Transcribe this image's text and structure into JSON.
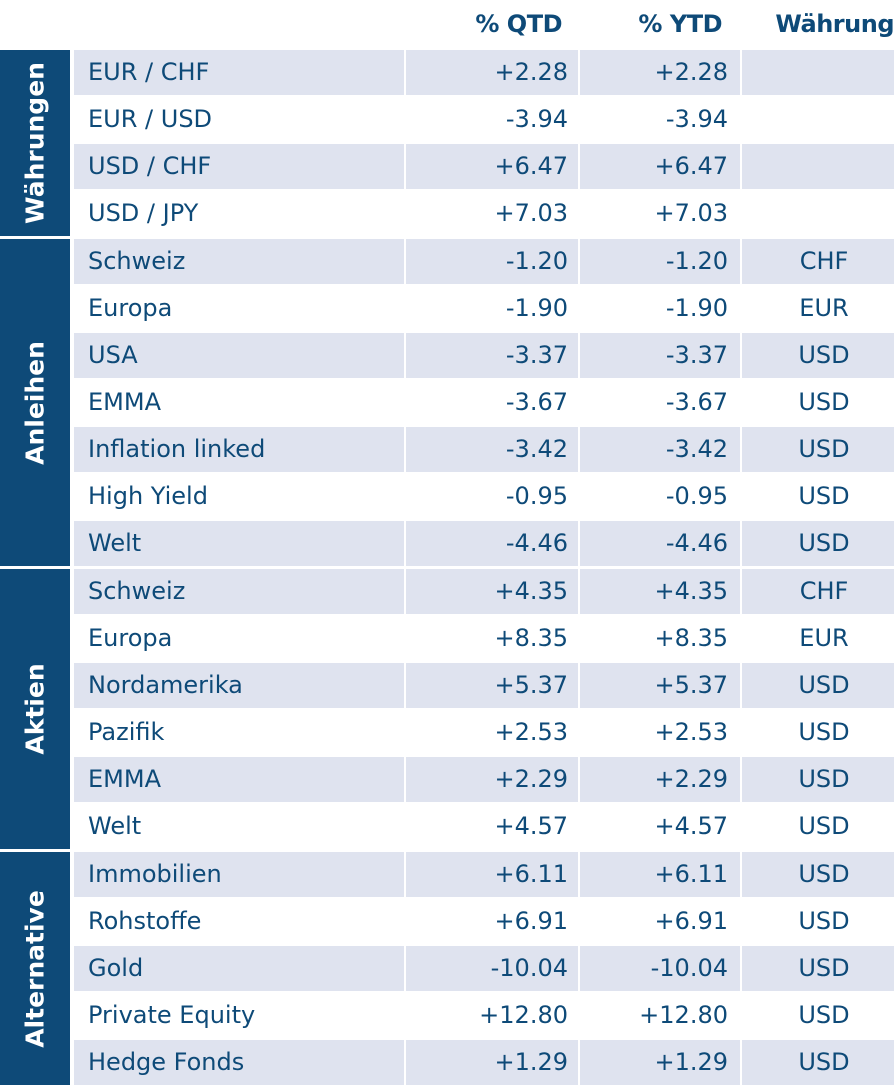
{
  "header": {
    "qtd": "% QTD",
    "ytd": "% YTD",
    "currency": "Währung"
  },
  "groups": [
    {
      "label": "Währungen",
      "rows": [
        {
          "name": "EUR / CHF",
          "qtd": "+2.28",
          "ytd": "+2.28",
          "cur": ""
        },
        {
          "name": "EUR / USD",
          "qtd": "-3.94",
          "ytd": "-3.94",
          "cur": ""
        },
        {
          "name": "USD / CHF",
          "qtd": "+6.47",
          "ytd": "+6.47",
          "cur": ""
        },
        {
          "name": "USD / JPY",
          "qtd": "+7.03",
          "ytd": "+7.03",
          "cur": ""
        }
      ]
    },
    {
      "label": "Anleihen",
      "rows": [
        {
          "name": "Schweiz",
          "qtd": "-1.20",
          "ytd": "-1.20",
          "cur": "CHF"
        },
        {
          "name": "Europa",
          "qtd": "-1.90",
          "ytd": "-1.90",
          "cur": "EUR"
        },
        {
          "name": "USA",
          "qtd": "-3.37",
          "ytd": "-3.37",
          "cur": "USD"
        },
        {
          "name": "EMMA",
          "qtd": "-3.67",
          "ytd": "-3.67",
          "cur": "USD"
        },
        {
          "name": "Inflation linked",
          "qtd": "-3.42",
          "ytd": "-3.42",
          "cur": "USD"
        },
        {
          "name": "High Yield",
          "qtd": "-0.95",
          "ytd": "-0.95",
          "cur": "USD"
        },
        {
          "name": "Welt",
          "qtd": "-4.46",
          "ytd": "-4.46",
          "cur": "USD"
        }
      ]
    },
    {
      "label": "Aktien",
      "rows": [
        {
          "name": "Schweiz",
          "qtd": "+4.35",
          "ytd": "+4.35",
          "cur": "CHF"
        },
        {
          "name": "Europa",
          "qtd": "+8.35",
          "ytd": "+8.35",
          "cur": "EUR"
        },
        {
          "name": "Nordamerika",
          "qtd": "+5.37",
          "ytd": "+5.37",
          "cur": "USD"
        },
        {
          "name": "Pazifik",
          "qtd": "+2.53",
          "ytd": "+2.53",
          "cur": "USD"
        },
        {
          "name": "EMMA",
          "qtd": "+2.29",
          "ytd": "+2.29",
          "cur": "USD"
        },
        {
          "name": "Welt",
          "qtd": "+4.57",
          "ytd": "+4.57",
          "cur": "USD"
        }
      ]
    },
    {
      "label": "Alternative",
      "rows": [
        {
          "name": "Immobilien",
          "qtd": "+6.11",
          "ytd": "+6.11",
          "cur": "USD"
        },
        {
          "name": "Rohstoffe",
          "qtd": "+6.91",
          "ytd": "+6.91",
          "cur": "USD"
        },
        {
          "name": "Gold",
          "qtd": "-10.04",
          "ytd": "-10.04",
          "cur": "USD"
        },
        {
          "name": "Private Equity",
          "qtd": "+12.80",
          "ytd": "+12.80",
          "cur": "USD"
        },
        {
          "name": "Hedge Fonds",
          "qtd": "+1.29",
          "ytd": "+1.29",
          "cur": "USD"
        }
      ]
    }
  ],
  "colors": {
    "accent": "#0e4a78",
    "shade": "#dfe3ef"
  }
}
